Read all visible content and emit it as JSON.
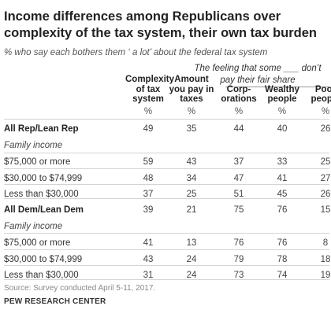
{
  "title_line1": "Income differences among Republicans over",
  "title_line2": "complexity of the tax system, their own tax burden",
  "subtitle": "% who say each bothers them ‘ a lot’ about the federal tax system",
  "group_header_line1": "The feeling that some ___ don’t",
  "group_header_line2": "pay their fair share",
  "pct_symbol": "%",
  "source": "Source: Survey conducted April 5-11, 2017.",
  "organization": "PEW RESEARCH CENTER",
  "chart_data": {
    "type": "table",
    "columns": [
      {
        "line1": "Complexity",
        "line2": "of tax",
        "line3": "system"
      },
      {
        "line1": "Amount",
        "line2": "you pay in",
        "line3": "taxes"
      },
      {
        "line1": "",
        "line2": "Corp-",
        "line3": "orations"
      },
      {
        "line1": "",
        "line2": "Wealthy",
        "line3": "people"
      },
      {
        "line1": "",
        "line2": "Poor",
        "line3": "people"
      }
    ],
    "rows": [
      {
        "label": "All Rep/Lean Rep",
        "style": "bold",
        "values": [
          49,
          35,
          44,
          40,
          26
        ]
      },
      {
        "label": "Family income",
        "style": "italic",
        "values": []
      },
      {
        "label": "$75,000 or more",
        "style": "normal",
        "values": [
          59,
          43,
          37,
          33,
          25
        ]
      },
      {
        "label": "$30,000 to $74,999",
        "style": "normal",
        "values": [
          48,
          34,
          47,
          41,
          27
        ]
      },
      {
        "label": "Less than $30,000",
        "style": "normal",
        "values": [
          37,
          25,
          51,
          45,
          26
        ]
      },
      {
        "label": "All Dem/Lean Dem",
        "style": "bold",
        "values": [
          39,
          21,
          75,
          76,
          15
        ]
      },
      {
        "label": "Family income",
        "style": "italic",
        "values": []
      },
      {
        "label": "$75,000 or more",
        "style": "normal",
        "values": [
          41,
          13,
          76,
          76,
          8
        ]
      },
      {
        "label": "$30,000 to $74,999",
        "style": "normal",
        "values": [
          43,
          24,
          79,
          78,
          18
        ]
      },
      {
        "label": "Less than $30,000",
        "style": "normal",
        "values": [
          31,
          24,
          73,
          74,
          19
        ]
      }
    ]
  }
}
